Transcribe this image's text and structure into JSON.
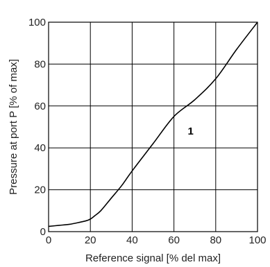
{
  "chart_data": {
    "type": "line",
    "xlabel": "Reference signal [% del max]",
    "ylabel": "Pressure at port P [% of max]",
    "xlim": [
      0,
      100
    ],
    "ylim": [
      0,
      100
    ],
    "xticks": [
      0,
      20,
      40,
      60,
      80,
      100
    ],
    "yticks": [
      0,
      20,
      40,
      60,
      80,
      100
    ],
    "grid": true,
    "series": [
      {
        "x": [
          0,
          5,
          10,
          15,
          18,
          20,
          22,
          25,
          30,
          35,
          40,
          50,
          60,
          70,
          80,
          90,
          100
        ],
        "y": [
          2.5,
          3,
          3.5,
          4.5,
          5.2,
          6,
          7.5,
          10,
          16,
          22,
          29,
          42,
          55,
          63,
          73,
          87,
          100
        ]
      }
    ],
    "annotations": [
      {
        "text": "1",
        "x": 68,
        "y": 48
      }
    ]
  }
}
